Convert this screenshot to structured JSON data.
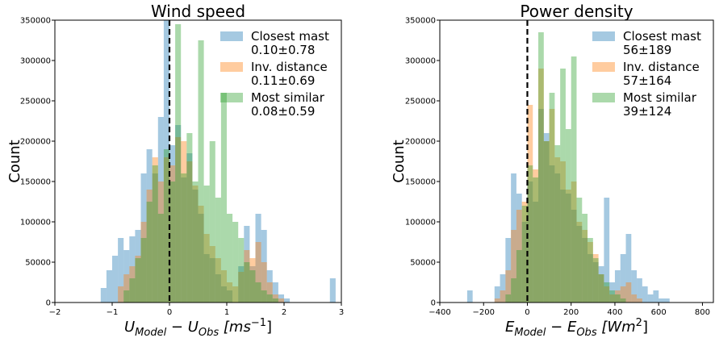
{
  "chart_data": [
    {
      "type": "bar",
      "title": "Wind speed",
      "xlabel": {
        "main": "U",
        "sub1": "Model",
        "mid": " − U",
        "sub2": "Obs",
        "unit_open": " [ms",
        "unit_sup": "−1",
        "unit_close": "]"
      },
      "ylabel": "Count",
      "xlim": [
        -2,
        3
      ],
      "ylim": [
        0,
        350000
      ],
      "xticks": [
        "−2",
        "−1",
        "0",
        "1",
        "2",
        "3"
      ],
      "xtick_values": [
        -2,
        -1,
        0,
        1,
        2,
        3
      ],
      "yticks": [
        "0",
        "50000",
        "100000",
        "150000",
        "200000",
        "250000",
        "300000",
        "350000"
      ],
      "ytick_values": [
        0,
        50000,
        100000,
        150000,
        200000,
        250000,
        300000,
        350000
      ],
      "reference_line": 0,
      "legend_position": "top-right",
      "series": [
        {
          "name": "Closest mast",
          "stat": "0.10±0.78",
          "color": "#1f77b4",
          "bin_start": -2.0,
          "bin_width": 0.1,
          "values": [
            0,
            0,
            0,
            0,
            0,
            0,
            0,
            0,
            18000,
            40000,
            58000,
            80000,
            65000,
            82000,
            90000,
            160000,
            190000,
            160000,
            230000,
            350000,
            195000,
            220000,
            155000,
            185000,
            140000,
            110000,
            60000,
            55000,
            35000,
            20000,
            15000,
            0,
            45000,
            95000,
            45000,
            110000,
            90000,
            40000,
            25000,
            10000,
            5000,
            0,
            0,
            0,
            0,
            0,
            0,
            0,
            30000,
            0
          ]
        },
        {
          "name": "Inv. distance",
          "stat": "0.11±0.69",
          "color": "#ff7f0e",
          "bin_start": -2.0,
          "bin_width": 0.1,
          "values": [
            0,
            0,
            0,
            0,
            0,
            0,
            0,
            0,
            0,
            0,
            0,
            20000,
            35000,
            45000,
            58000,
            100000,
            140000,
            180000,
            150000,
            180000,
            170000,
            205000,
            200000,
            175000,
            145000,
            120000,
            85000,
            70000,
            55000,
            40000,
            25000,
            20000,
            38000,
            65000,
            55000,
            75000,
            50000,
            25000,
            10000,
            5000,
            0,
            0,
            0,
            0,
            0,
            0,
            0,
            0,
            0,
            0
          ]
        },
        {
          "name": "Most similar",
          "stat": "0.08±0.59",
          "color": "#2ca02c",
          "bin_start": -2.0,
          "bin_width": 0.1,
          "values": [
            0,
            0,
            0,
            0,
            0,
            0,
            0,
            0,
            0,
            0,
            0,
            0,
            15000,
            30000,
            55000,
            80000,
            125000,
            170000,
            110000,
            190000,
            150000,
            345000,
            160000,
            210000,
            150000,
            325000,
            145000,
            200000,
            130000,
            260000,
            110000,
            100000,
            80000,
            50000,
            40000,
            25000,
            15000,
            10000,
            5000,
            0,
            0,
            0,
            0,
            0,
            0,
            0,
            0,
            0,
            0,
            0
          ]
        }
      ]
    },
    {
      "type": "bar",
      "title": "Power density",
      "xlabel": {
        "main": "E",
        "sub1": "Model",
        "mid": " − E",
        "sub2": "Obs",
        "unit_open": " [Wm",
        "unit_sup": "2",
        "unit_close": "]"
      },
      "ylabel": "Count",
      "xlim": [
        -400,
        850
      ],
      "ylim": [
        0,
        350000
      ],
      "xticks": [
        "−400",
        "−200",
        "0",
        "200",
        "400",
        "600",
        "800"
      ],
      "xtick_values": [
        -400,
        -200,
        0,
        200,
        400,
        600,
        800
      ],
      "yticks": [
        "0",
        "50000",
        "100000",
        "150000",
        "200000",
        "250000",
        "300000",
        "350000"
      ],
      "ytick_values": [
        0,
        50000,
        100000,
        150000,
        200000,
        250000,
        300000,
        350000
      ],
      "reference_line": 0,
      "legend_position": "top-right",
      "series": [
        {
          "name": "Closest mast",
          "stat": "56±189",
          "color": "#1f77b4",
          "bin_start": -400,
          "bin_width": 25,
          "values": [
            0,
            0,
            0,
            0,
            0,
            15000,
            0,
            0,
            0,
            0,
            20000,
            35000,
            80000,
            160000,
            135000,
            100000,
            150000,
            125000,
            240000,
            210000,
            170000,
            160000,
            140000,
            135000,
            115000,
            95000,
            80000,
            60000,
            50000,
            45000,
            130000,
            25000,
            40000,
            60000,
            85000,
            40000,
            30000,
            20000,
            10000,
            15000,
            5000,
            5000,
            0,
            0,
            0,
            0,
            0,
            0,
            0,
            0
          ]
        },
        {
          "name": "Inv. distance",
          "stat": "57±164",
          "color": "#ff7f0e",
          "bin_start": -400,
          "bin_width": 25,
          "values": [
            0,
            0,
            0,
            0,
            0,
            0,
            0,
            0,
            0,
            0,
            5000,
            15000,
            40000,
            90000,
            115000,
            125000,
            245000,
            165000,
            290000,
            200000,
            240000,
            180000,
            175000,
            140000,
            150000,
            100000,
            90000,
            75000,
            60000,
            35000,
            20000,
            10000,
            15000,
            20000,
            25000,
            10000,
            5000,
            0,
            0,
            0,
            0,
            0,
            0,
            0,
            0,
            0,
            0,
            0,
            0,
            0
          ]
        },
        {
          "name": "Most similar",
          "stat": "39±124",
          "color": "#2ca02c",
          "bin_start": -400,
          "bin_width": 25,
          "values": [
            0,
            0,
            0,
            0,
            0,
            0,
            0,
            0,
            0,
            0,
            0,
            0,
            10000,
            30000,
            65000,
            120000,
            170000,
            155000,
            335000,
            200000,
            260000,
            195000,
            290000,
            215000,
            305000,
            130000,
            110000,
            80000,
            55000,
            35000,
            25000,
            15000,
            10000,
            5000,
            0,
            0,
            0,
            0,
            0,
            0,
            0,
            0,
            0,
            0,
            0,
            0,
            0,
            0,
            0,
            0
          ]
        }
      ]
    }
  ]
}
